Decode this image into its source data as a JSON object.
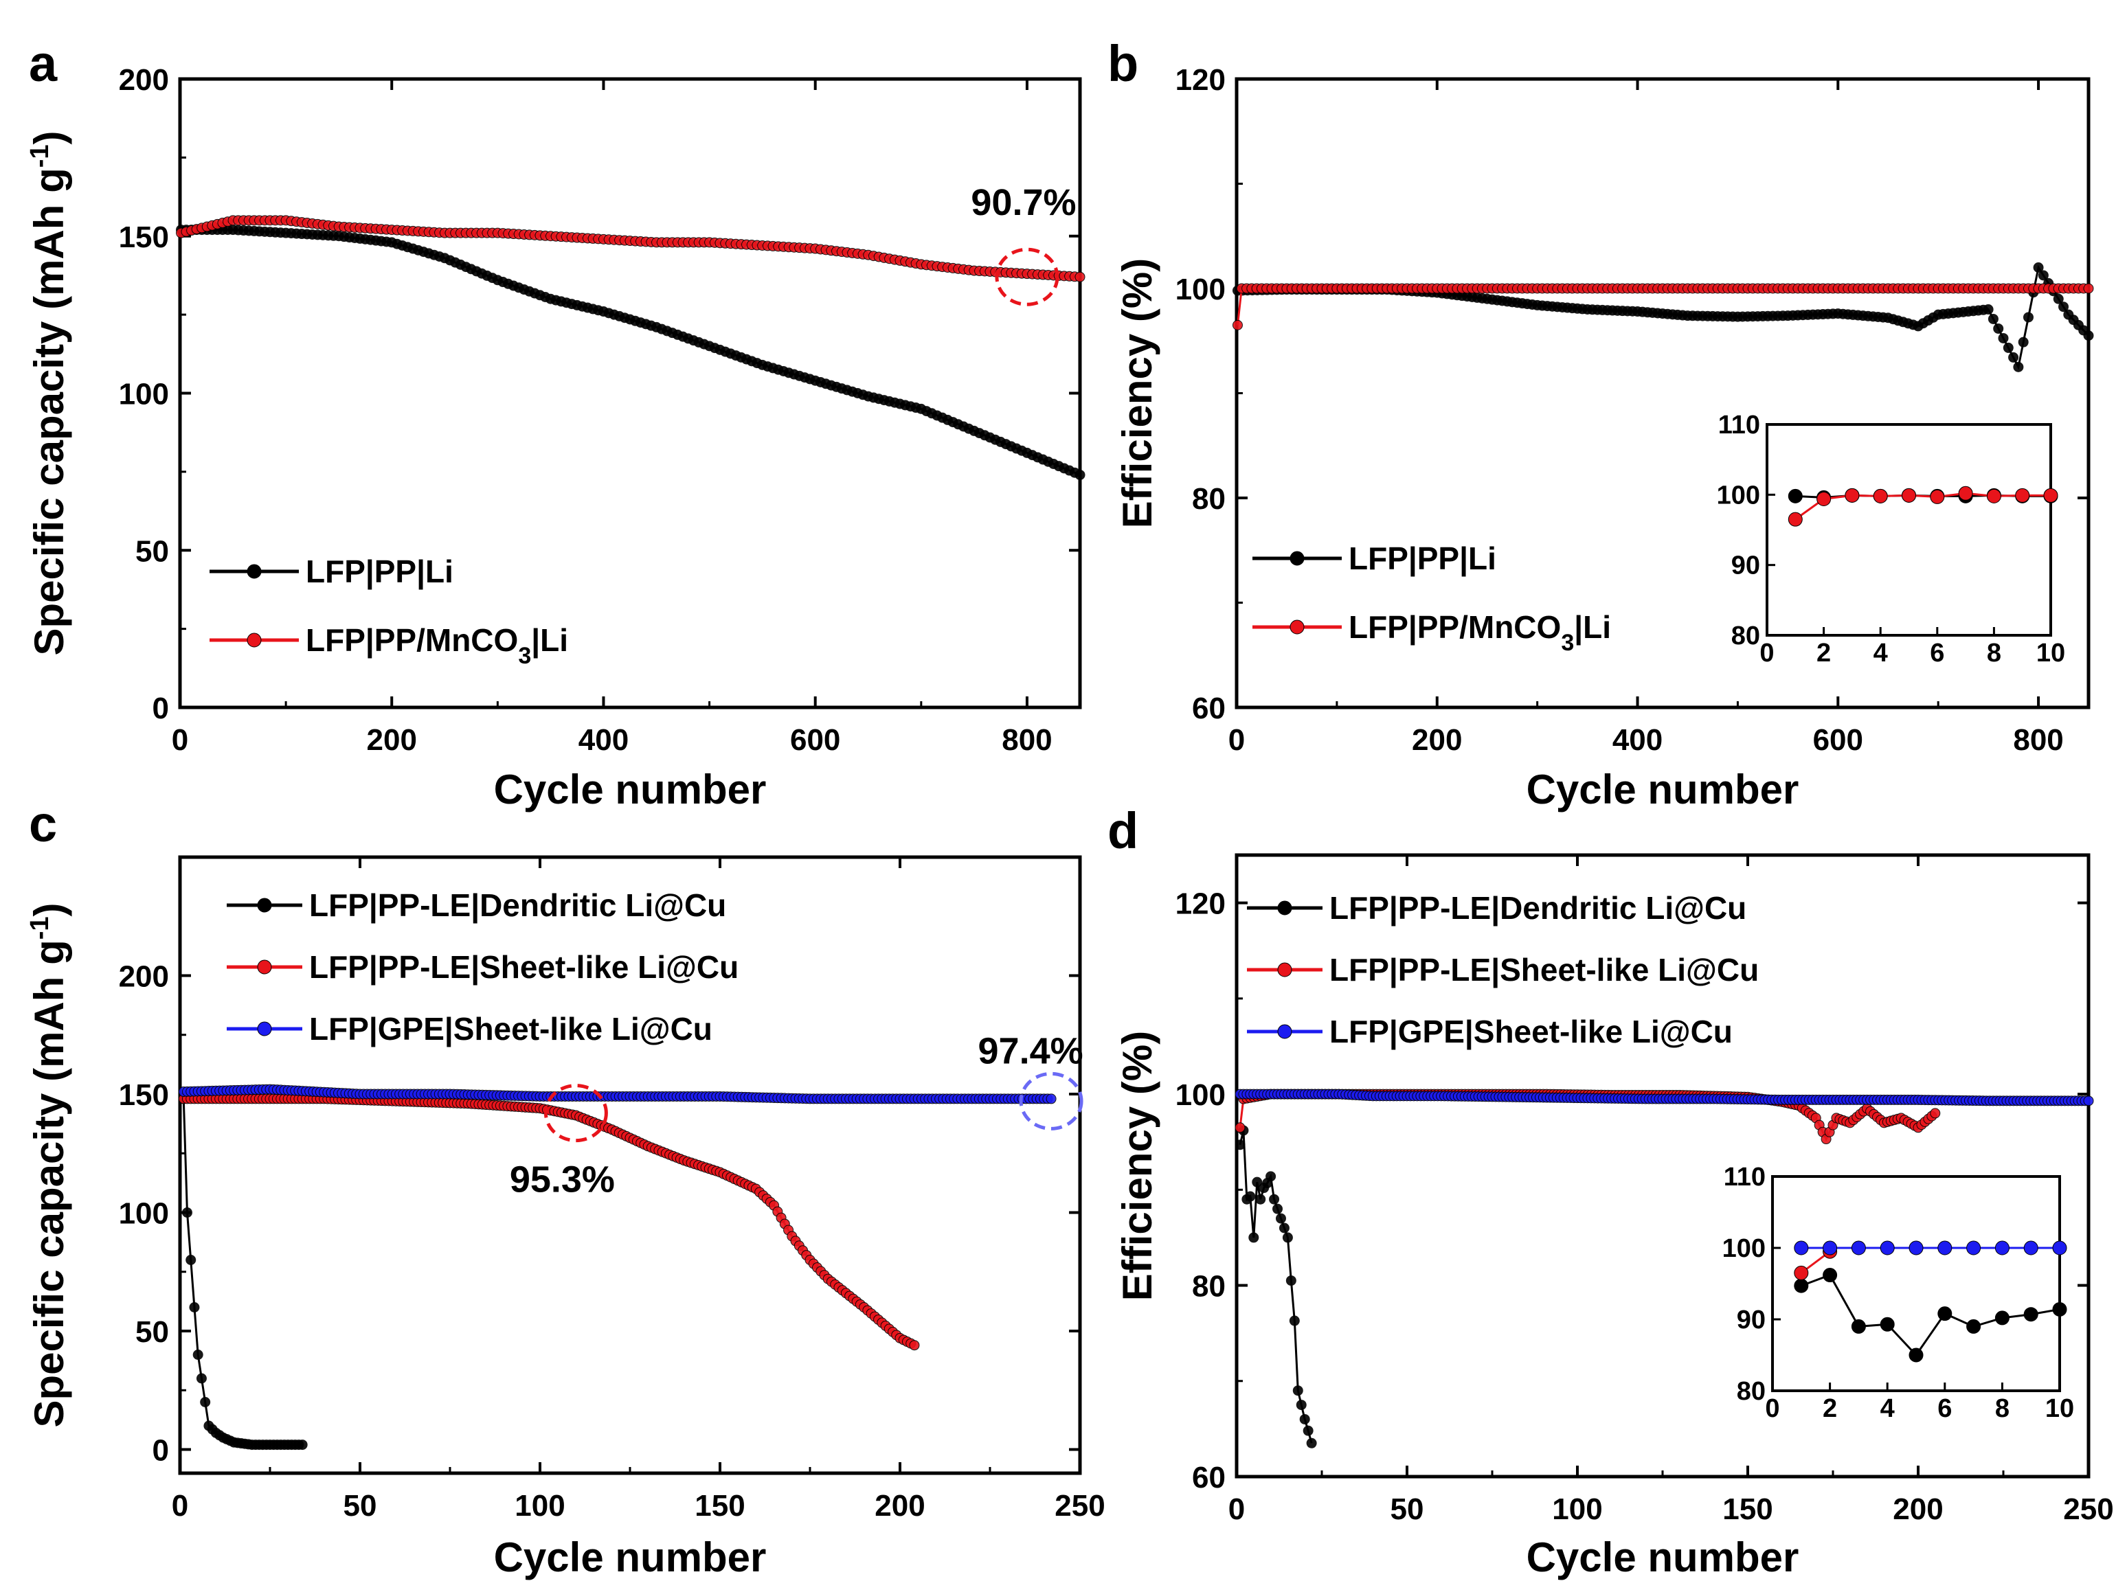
{
  "colors": {
    "black_series": "#000000",
    "red_series": "#e8141b",
    "blue_series": "#1c1cf0"
  },
  "chart_data": [
    {
      "panel": "a",
      "type": "scatter",
      "xlabel": "Cycle number",
      "ylabel": "Specific capacity (mAh g-1)",
      "ylabel_main": "Specific capacity (mAh g",
      "ylabel_sup": "-1",
      "ylabel_end": ")",
      "xlim": [
        0,
        850
      ],
      "ylim": [
        0,
        200
      ],
      "xticks": [
        "0",
        "200",
        "400",
        "600",
        "800"
      ],
      "yticks": [
        "0",
        "50",
        "100",
        "150",
        "200"
      ],
      "legend_position": "bottom-left",
      "annotation": {
        "text": "90.7%",
        "x": 800,
        "y": 137
      },
      "series": [
        {
          "name": "LFP|PP|Li",
          "name_main": "LFP|PP|Li",
          "name_sub": "",
          "name_end": "",
          "color": "#000000",
          "x": [
            1,
            50,
            100,
            150,
            200,
            250,
            300,
            350,
            400,
            450,
            500,
            550,
            600,
            650,
            700,
            750,
            800,
            850
          ],
          "y": [
            152,
            152,
            151,
            150,
            148,
            143,
            136,
            130,
            126,
            121,
            115,
            109,
            104,
            99,
            95,
            88,
            81,
            74
          ]
        },
        {
          "name": "LFP|PP/MnCO3|Li",
          "name_main": "LFP|PP/MnCO",
          "name_sub": "3",
          "name_end": "|Li",
          "color": "#e8141b",
          "x": [
            1,
            50,
            100,
            150,
            200,
            250,
            300,
            350,
            400,
            450,
            500,
            550,
            600,
            650,
            700,
            750,
            800,
            850
          ],
          "y": [
            151,
            155,
            155,
            153,
            152,
            151,
            151,
            150,
            149,
            148,
            148,
            147,
            146,
            144,
            141,
            139,
            138,
            137
          ]
        }
      ]
    },
    {
      "panel": "b",
      "type": "scatter",
      "xlabel": "Cycle number",
      "ylabel": "Efficiency (%)",
      "xlim": [
        0,
        850
      ],
      "ylim": [
        60,
        120
      ],
      "xticks": [
        "0",
        "200",
        "400",
        "600",
        "800"
      ],
      "yticks": [
        "60",
        "80",
        "100",
        "120"
      ],
      "legend_position": "bottom-left",
      "series": [
        {
          "name": "LFP|PP|Li",
          "name_main": "LFP|PP|Li",
          "name_sub": "",
          "name_end": "",
          "color": "#000000",
          "x": [
            1,
            50,
            100,
            150,
            200,
            250,
            300,
            350,
            400,
            450,
            500,
            550,
            600,
            650,
            680,
            700,
            750,
            780,
            800,
            830,
            850
          ],
          "y": [
            99.8,
            99.9,
            99.9,
            99.9,
            99.6,
            99,
            98.4,
            98,
            97.8,
            97.4,
            97.3,
            97.4,
            97.6,
            97.2,
            96.4,
            97.5,
            98,
            92.5,
            102,
            97.5,
            95.5
          ]
        },
        {
          "name": "LFP|PP/MnCO3|Li",
          "name_main": "LFP|PP/MnCO",
          "name_sub": "3",
          "name_end": "|Li",
          "color": "#e8141b",
          "x": [
            1,
            5,
            50,
            100,
            150,
            200,
            250,
            300,
            350,
            400,
            450,
            500,
            550,
            600,
            650,
            700,
            750,
            800,
            850
          ],
          "y": [
            96.5,
            100,
            100,
            100,
            100,
            100,
            100,
            100,
            100,
            100,
            100,
            100,
            100,
            100,
            100,
            100,
            100,
            100,
            100
          ]
        }
      ],
      "inset": {
        "xlim": [
          0,
          10
        ],
        "ylim": [
          80,
          110
        ],
        "xticks": [
          "0",
          "2",
          "4",
          "6",
          "8",
          "10"
        ],
        "yticks": [
          "80",
          "90",
          "100",
          "110"
        ],
        "series": [
          {
            "color": "#000000",
            "x": [
              1,
              2,
              3,
              4,
              5,
              6,
              7,
              8,
              9,
              10
            ],
            "y": [
              99.8,
              99.6,
              99.9,
              99.8,
              99.9,
              99.8,
              99.8,
              99.9,
              99.8,
              99.8
            ]
          },
          {
            "color": "#e8141b",
            "x": [
              1,
              2,
              3,
              4,
              5,
              6,
              7,
              8,
              9,
              10
            ],
            "y": [
              96.5,
              99.4,
              99.9,
              99.8,
              99.9,
              99.7,
              100.2,
              99.8,
              99.9,
              99.9
            ]
          }
        ]
      }
    },
    {
      "panel": "c",
      "type": "scatter",
      "xlabel": "Cycle number",
      "ylabel": "Specific capacity (mAh g-1)",
      "ylabel_main": "Specific capacity (mAh g",
      "ylabel_sup": "-1",
      "ylabel_end": ")",
      "xlim": [
        0,
        250
      ],
      "ylim": [
        -10,
        250
      ],
      "xticks": [
        "0",
        "50",
        "100",
        "150",
        "200",
        "250"
      ],
      "yticks": [
        "0",
        "50",
        "100",
        "150",
        "200"
      ],
      "legend_position": "top-left",
      "annotations": [
        {
          "text": "95.3%",
          "x": 110,
          "y": 142
        },
        {
          "text": "97.4%",
          "x": 242,
          "y": 147
        }
      ],
      "series": [
        {
          "name": "LFP|PP-LE|Dendritic Li@Cu",
          "color": "#000000",
          "x": [
            1,
            2,
            3,
            4,
            5,
            6,
            7,
            8,
            10,
            12,
            15,
            20,
            25,
            30,
            34
          ],
          "y": [
            148,
            100,
            80,
            60,
            40,
            30,
            20,
            10,
            7,
            5,
            3,
            2,
            2,
            2,
            2
          ]
        },
        {
          "name": "LFP|PP-LE|Sheet-like Li@Cu",
          "color": "#e8141b",
          "x": [
            1,
            20,
            40,
            60,
            80,
            100,
            110,
            120,
            130,
            140,
            150,
            160,
            165,
            170,
            175,
            180,
            190,
            200,
            204
          ],
          "y": [
            148,
            148,
            148,
            147,
            146,
            144,
            141,
            135,
            128,
            122,
            117,
            110,
            103,
            90,
            80,
            72,
            60,
            47,
            44
          ]
        },
        {
          "name": "LFP|GPE|Sheet-like Li@Cu",
          "color": "#1c1cf0",
          "x": [
            1,
            25,
            50,
            75,
            100,
            125,
            150,
            175,
            200,
            225,
            242
          ],
          "y": [
            151,
            152,
            150,
            150,
            149,
            149,
            149,
            148,
            148,
            148,
            148
          ]
        }
      ]
    },
    {
      "panel": "d",
      "type": "scatter",
      "xlabel": "Cycle number",
      "ylabel": "Efficiency (%)",
      "xlim": [
        0,
        250
      ],
      "ylim": [
        60,
        125
      ],
      "xticks": [
        "0",
        "50",
        "100",
        "150",
        "200",
        "250"
      ],
      "yticks": [
        "60",
        "80",
        "100",
        "120"
      ],
      "legend_position": "top-left",
      "series": [
        {
          "name": "LFP|PP-LE|Dendritic Li@Cu",
          "color": "#000000",
          "x": [
            1,
            2,
            3,
            4,
            5,
            6,
            7,
            8,
            9,
            10,
            11,
            12,
            13,
            14,
            15,
            16,
            17,
            18,
            19,
            20,
            21,
            22
          ],
          "y": [
            94.7,
            96.2,
            89,
            89.3,
            85,
            90.8,
            89,
            90.2,
            90.7,
            91.4,
            89,
            88,
            87,
            86,
            85,
            80.5,
            76.3,
            69,
            67.5,
            66,
            64.8,
            63.5
          ]
        },
        {
          "name": "LFP|PP-LE|Sheet-like Li@Cu",
          "color": "#e8141b",
          "x": [
            1,
            2,
            10,
            30,
            50,
            70,
            90,
            110,
            130,
            150,
            160,
            165,
            170,
            173,
            176,
            180,
            185,
            190,
            195,
            200,
            205
          ],
          "y": [
            96.5,
            99.5,
            100,
            100,
            100,
            100,
            100,
            99.9,
            99.9,
            99.7,
            99.2,
            98.8,
            97.5,
            95.3,
            97.5,
            97,
            98.5,
            97,
            97.5,
            96.5,
            98
          ]
        },
        {
          "name": "LFP|GPE|Sheet-like Li@Cu",
          "color": "#1c1cf0",
          "x": [
            1,
            10,
            20,
            30,
            40,
            60,
            80,
            100,
            120,
            140,
            160,
            180,
            200,
            220,
            240,
            250
          ],
          "y": [
            100,
            100,
            100,
            100,
            99.8,
            99.8,
            99.7,
            99.6,
            99.5,
            99.5,
            99.4,
            99.4,
            99.4,
            99.3,
            99.3,
            99.3
          ]
        }
      ],
      "inset": {
        "xlim": [
          0,
          10
        ],
        "ylim": [
          80,
          110
        ],
        "xticks": [
          "0",
          "2",
          "4",
          "6",
          "8",
          "10"
        ],
        "yticks": [
          "80",
          "90",
          "100",
          "110"
        ],
        "series": [
          {
            "color": "#000000",
            "x": [
              1,
              2,
              3,
              4,
              5,
              6,
              7,
              8,
              9,
              10
            ],
            "y": [
              94.7,
              96.2,
              89,
              89.3,
              85,
              90.8,
              89,
              90.2,
              90.7,
              91.4
            ]
          },
          {
            "color": "#e8141b",
            "x": [
              1,
              2
            ],
            "y": [
              96.5,
              99.5
            ]
          },
          {
            "color": "#1c1cf0",
            "x": [
              1,
              2,
              3,
              4,
              5,
              6,
              7,
              8,
              9,
              10
            ],
            "y": [
              100,
              100,
              100,
              100,
              100,
              100,
              100,
              100,
              100,
              100
            ]
          }
        ]
      }
    }
  ]
}
